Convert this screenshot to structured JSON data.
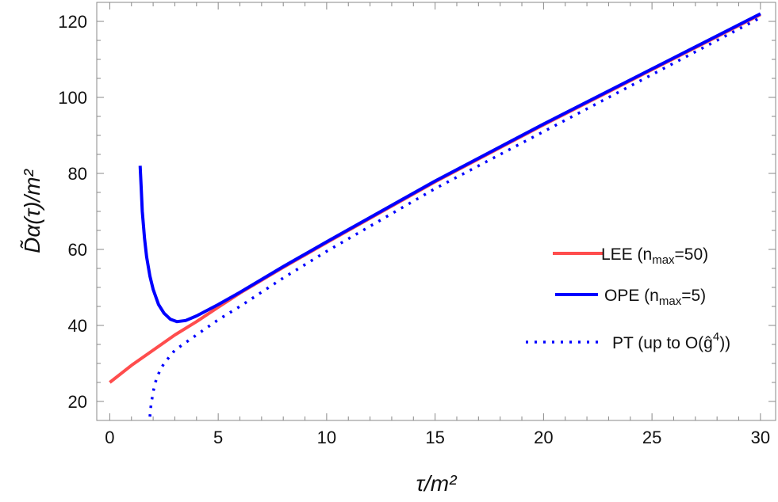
{
  "chart_data": {
    "type": "line",
    "xlabel": "τ/m²",
    "ylabel": "D̃α(τ)/m²",
    "xlim": [
      -0.6,
      30.7
    ],
    "ylim": [
      15,
      125
    ],
    "xticks": [
      0,
      5,
      10,
      15,
      20,
      25,
      30
    ],
    "yticks": [
      20,
      40,
      60,
      80,
      100,
      120
    ],
    "grid": false,
    "legend_position": "right",
    "series": [
      {
        "name": "LEE (n_max=50)",
        "legend_main": "LEE (n",
        "legend_sub": "max",
        "legend_end": "=50)",
        "color": "#ff4d4d",
        "style": "solid",
        "x": [
          0,
          1,
          2,
          3,
          4,
          5,
          6,
          8,
          10,
          15,
          20,
          25,
          30
        ],
        "y": [
          25,
          29.5,
          33.5,
          37.5,
          41,
          44.8,
          48.5,
          55.3,
          61.8,
          77.8,
          92.8,
          107.3,
          121.8
        ]
      },
      {
        "name": "OPE (n_max=5)",
        "legend_main": "OPE (n",
        "legend_sub": "max",
        "legend_end": "=5)",
        "color": "#0000ff",
        "style": "solid",
        "x": [
          1.4,
          1.45,
          1.5,
          1.6,
          1.7,
          1.85,
          2.0,
          2.25,
          2.5,
          2.8,
          3.1,
          3.5,
          4,
          5,
          6,
          8,
          10,
          15,
          20,
          25,
          30
        ],
        "y": [
          82,
          76,
          70,
          63,
          58,
          53,
          49.5,
          45.5,
          43.2,
          41.6,
          41,
          41.3,
          42.5,
          45.5,
          48.7,
          55.5,
          62,
          78,
          93,
          107.5,
          122
        ]
      },
      {
        "name": "PT (up to O(ĝ⁴))",
        "legend_main": "PT (up to O(ĝ",
        "legend_sup": "4",
        "legend_end": "))",
        "color": "#0000ff",
        "style": "dotted",
        "x": [
          1.85,
          1.9,
          2.0,
          2.1,
          2.3,
          2.5,
          3,
          4,
          5,
          6,
          8,
          10,
          15,
          20,
          25,
          30
        ],
        "y": [
          16,
          19,
          22.5,
          25,
          28,
          30,
          33.5,
          37.5,
          41.5,
          45,
          52.5,
          59.5,
          76,
          91,
          106,
          121
        ]
      }
    ]
  }
}
